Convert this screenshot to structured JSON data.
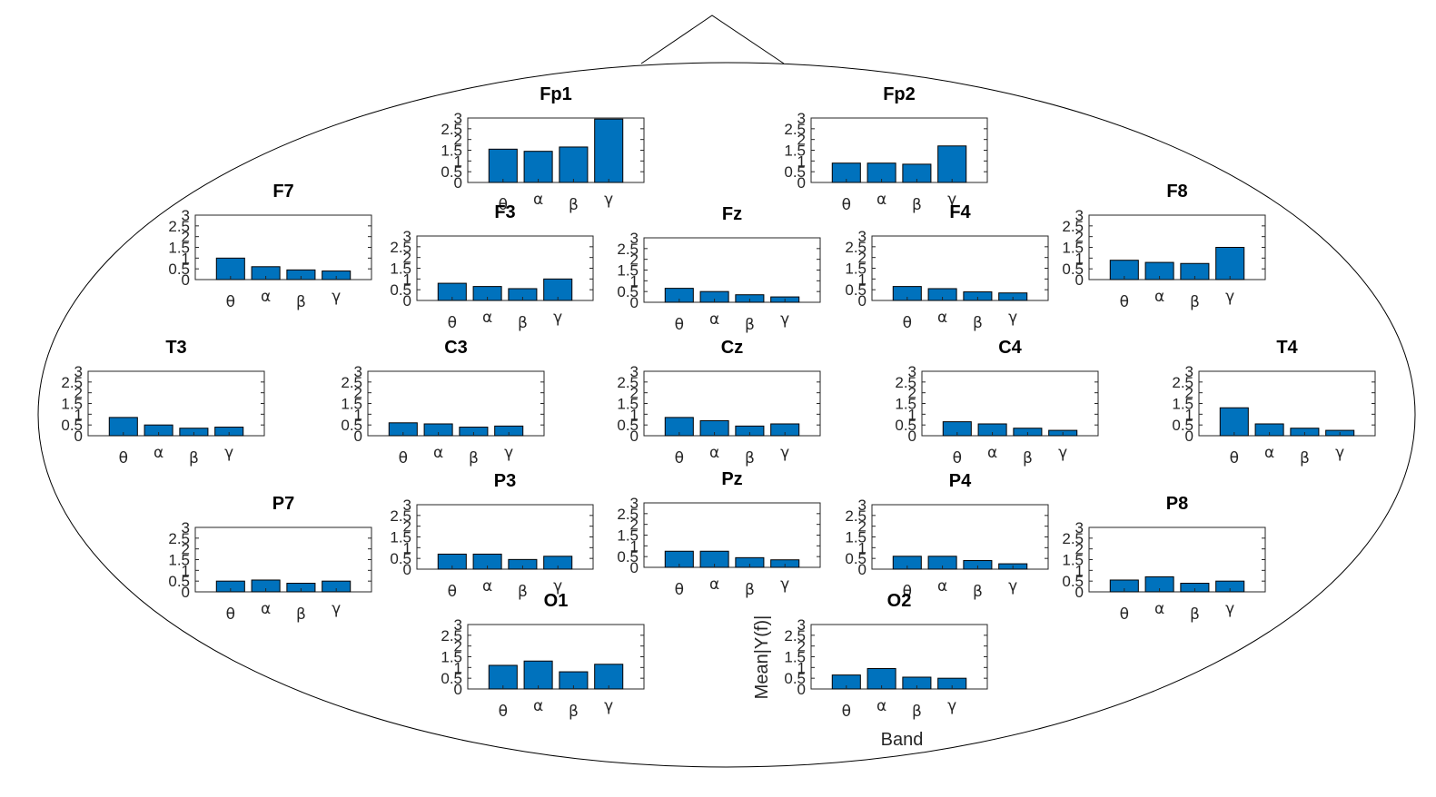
{
  "chart_data": {
    "type": "bar",
    "xlabel": "Band",
    "ylabel": "Mean|Y(f)|",
    "ylim": [
      0,
      3
    ],
    "yticks": [
      "0",
      "0.5",
      "1",
      "1.5",
      "2",
      "2.5",
      "3"
    ],
    "categories": [
      "θ",
      "α",
      "β",
      "γ"
    ],
    "bar_color": "#0072BD",
    "channels": [
      {
        "name": "Fp1",
        "values": [
          1.55,
          1.45,
          1.65,
          2.95
        ]
      },
      {
        "name": "Fp2",
        "values": [
          0.9,
          0.9,
          0.85,
          1.7
        ]
      },
      {
        "name": "F7",
        "values": [
          1.0,
          0.6,
          0.45,
          0.4
        ]
      },
      {
        "name": "F3",
        "values": [
          0.8,
          0.65,
          0.55,
          1.0
        ]
      },
      {
        "name": "Fz",
        "values": [
          0.65,
          0.5,
          0.35,
          0.25
        ]
      },
      {
        "name": "F4",
        "values": [
          0.65,
          0.55,
          0.4,
          0.35
        ]
      },
      {
        "name": "F8",
        "values": [
          0.9,
          0.8,
          0.75,
          1.5
        ]
      },
      {
        "name": "T3",
        "values": [
          0.85,
          0.5,
          0.35,
          0.4
        ]
      },
      {
        "name": "C3",
        "values": [
          0.6,
          0.55,
          0.4,
          0.45
        ]
      },
      {
        "name": "Cz",
        "values": [
          0.85,
          0.7,
          0.45,
          0.55
        ]
      },
      {
        "name": "C4",
        "values": [
          0.65,
          0.55,
          0.35,
          0.25
        ]
      },
      {
        "name": "T4",
        "values": [
          1.3,
          0.55,
          0.35,
          0.25
        ]
      },
      {
        "name": "P7",
        "values": [
          0.5,
          0.55,
          0.4,
          0.5
        ]
      },
      {
        "name": "P3",
        "values": [
          0.7,
          0.7,
          0.45,
          0.6
        ]
      },
      {
        "name": "Pz",
        "values": [
          0.75,
          0.75,
          0.45,
          0.35
        ]
      },
      {
        "name": "P4",
        "values": [
          0.6,
          0.6,
          0.4,
          0.25
        ]
      },
      {
        "name": "P8",
        "values": [
          0.55,
          0.7,
          0.4,
          0.5
        ]
      },
      {
        "name": "O1",
        "values": [
          1.1,
          1.3,
          0.8,
          1.15
        ]
      },
      {
        "name": "O2",
        "values": [
          0.65,
          0.95,
          0.55,
          0.5
        ]
      }
    ]
  }
}
